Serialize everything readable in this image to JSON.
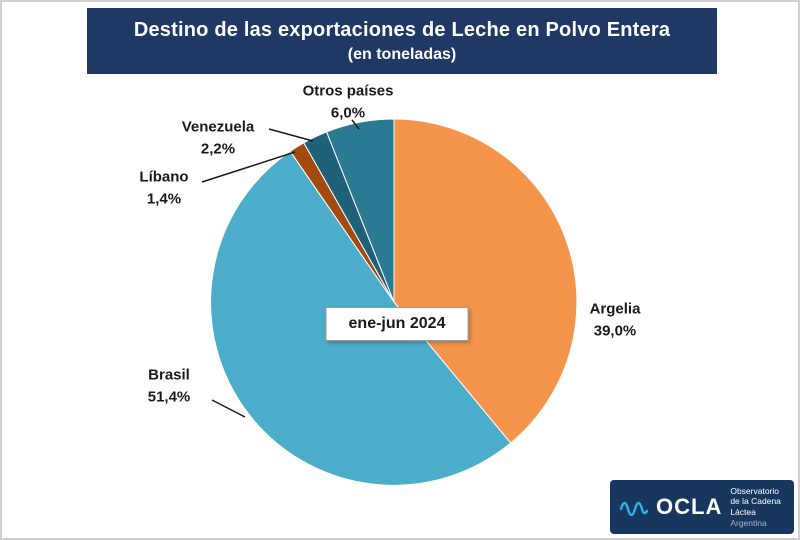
{
  "title": {
    "line1": "Destino de las exportaciones de Leche en Polvo Entera",
    "line2": "(en toneladas)"
  },
  "center_label": "ene-jun 2024",
  "logo": {
    "acronym": "OCLA",
    "org_line1": "Observatorio",
    "org_line2": "de la Cadena Láctea",
    "org_line3": "Argentina"
  },
  "colors": {
    "title_bg": "#1F3864",
    "title_text": "#FFFFFF",
    "logo_bg": "#17375E",
    "logo_wave": "#2BB3E6"
  },
  "chart_data": {
    "type": "pie",
    "title": "Destino de las exportaciones de Leche en Polvo Entera (en toneladas)",
    "period": "ene-jun 2024",
    "start_angle_deg": 0,
    "direction": "clockwise",
    "legend": "none",
    "label_style": "outside-with-leader-lines",
    "slices": [
      {
        "label": "Argelia",
        "pct_label": "39,0%",
        "value": 39.0,
        "color": "#F5954C"
      },
      {
        "label": "Brasil",
        "pct_label": "51,4%",
        "value": 51.4,
        "color": "#4BADC9"
      },
      {
        "label": "Líbano",
        "pct_label": "1,4%",
        "value": 1.4,
        "color": "#A34A10"
      },
      {
        "label": "Venezuela",
        "pct_label": "2,2%",
        "value": 2.2,
        "color": "#1F6179"
      },
      {
        "label": "Otros países",
        "pct_label": "6,0%",
        "value": 6.0,
        "color": "#2A7A94"
      }
    ]
  }
}
